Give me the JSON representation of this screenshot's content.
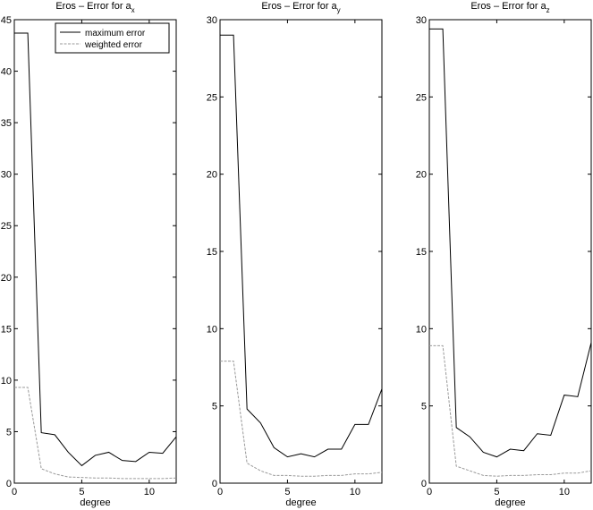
{
  "chart_data": [
    {
      "type": "line",
      "title": "Eros – Error for a",
      "title_subscript": "x",
      "xlabel": "degree",
      "ylabel": "",
      "xlim": [
        0,
        12
      ],
      "ylim": [
        0,
        45
      ],
      "xticks": [
        0,
        5,
        10
      ],
      "yticks": [
        0,
        5,
        10,
        15,
        20,
        25,
        30,
        35,
        40,
        45
      ],
      "grid": false,
      "legend": "top-right",
      "x": [
        0,
        1,
        2,
        3,
        4,
        5,
        6,
        7,
        8,
        9,
        10,
        11,
        12
      ],
      "series": [
        {
          "name": "maximum error",
          "values": [
            43.7,
            43.7,
            4.9,
            4.7,
            3.0,
            1.7,
            2.7,
            3.0,
            2.2,
            2.1,
            3.0,
            2.9,
            4.5
          ]
        },
        {
          "name": "weighted error",
          "values": [
            9.3,
            9.3,
            1.4,
            0.9,
            0.6,
            0.55,
            0.5,
            0.5,
            0.45,
            0.45,
            0.45,
            0.45,
            0.5
          ]
        }
      ]
    },
    {
      "type": "line",
      "title": "Eros – Error for a",
      "title_subscript": "y",
      "xlabel": "degree",
      "ylabel": "",
      "xlim": [
        0,
        12
      ],
      "ylim": [
        0,
        30
      ],
      "xticks": [
        0,
        5,
        10
      ],
      "yticks": [
        0,
        5,
        10,
        15,
        20,
        25,
        30
      ],
      "grid": false,
      "x": [
        0,
        1,
        2,
        3,
        4,
        5,
        6,
        7,
        8,
        9,
        10,
        11,
        12
      ],
      "series": [
        {
          "values": [
            29.0,
            29.0,
            4.8,
            3.9,
            2.3,
            1.7,
            1.9,
            1.7,
            2.2,
            2.2,
            3.8,
            3.8,
            6.1
          ]
        },
        {
          "values": [
            7.9,
            7.9,
            1.3,
            0.8,
            0.5,
            0.5,
            0.45,
            0.45,
            0.5,
            0.5,
            0.6,
            0.6,
            0.7
          ]
        }
      ]
    },
    {
      "type": "line",
      "title": "Eros – Error for a",
      "title_subscript": "z",
      "xlabel": "degree",
      "ylabel": "",
      "xlim": [
        0,
        12
      ],
      "ylim": [
        0,
        30
      ],
      "xticks": [
        0,
        5,
        10
      ],
      "yticks": [
        0,
        5,
        10,
        15,
        20,
        25,
        30
      ],
      "grid": false,
      "x": [
        0,
        1,
        2,
        3,
        4,
        5,
        6,
        7,
        8,
        9,
        10,
        11,
        12
      ],
      "series": [
        {
          "values": [
            29.4,
            29.4,
            3.6,
            3.0,
            2.0,
            1.7,
            2.2,
            2.1,
            3.2,
            3.1,
            5.7,
            5.6,
            9.1
          ]
        },
        {
          "values": [
            8.9,
            8.9,
            1.1,
            0.8,
            0.5,
            0.45,
            0.5,
            0.5,
            0.55,
            0.55,
            0.65,
            0.65,
            0.8
          ]
        }
      ]
    }
  ]
}
